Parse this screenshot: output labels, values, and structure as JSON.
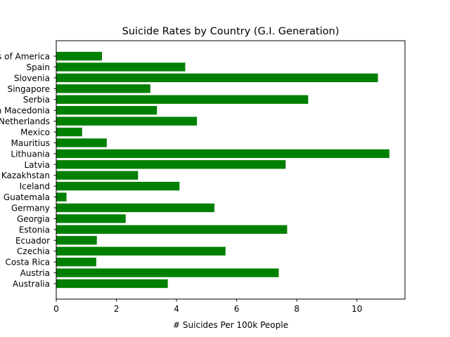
{
  "chart_data": {
    "type": "bar",
    "orientation": "horizontal",
    "title": "Suicide Rates by Country (G.I. Generation)",
    "xlabel": "# Suicides Per 100k People",
    "ylabel": "",
    "xlim": [
      0,
      11.6
    ],
    "xticks": [
      0,
      2,
      4,
      6,
      8,
      10
    ],
    "bar_color": "#008000",
    "grid": false,
    "categories": [
      "Australia",
      "Austria",
      "Costa Rica",
      "Czechia",
      "Ecuador",
      "Estonia",
      "Georgia",
      "Germany",
      "Guatemala",
      "Iceland",
      "Kazakhstan",
      "Latvia",
      "Lithuania",
      "Mauritius",
      "Mexico",
      "Netherlands",
      "North Macedonia",
      "Serbia",
      "Singapore",
      "Slovenia",
      "Spain",
      "United States of America"
    ],
    "values": [
      3.71,
      7.4,
      1.33,
      5.63,
      1.35,
      7.68,
      2.31,
      5.26,
      0.34,
      4.1,
      2.72,
      7.63,
      11.08,
      1.68,
      0.86,
      4.68,
      3.35,
      8.38,
      3.13,
      10.7,
      4.29,
      1.52
    ]
  }
}
